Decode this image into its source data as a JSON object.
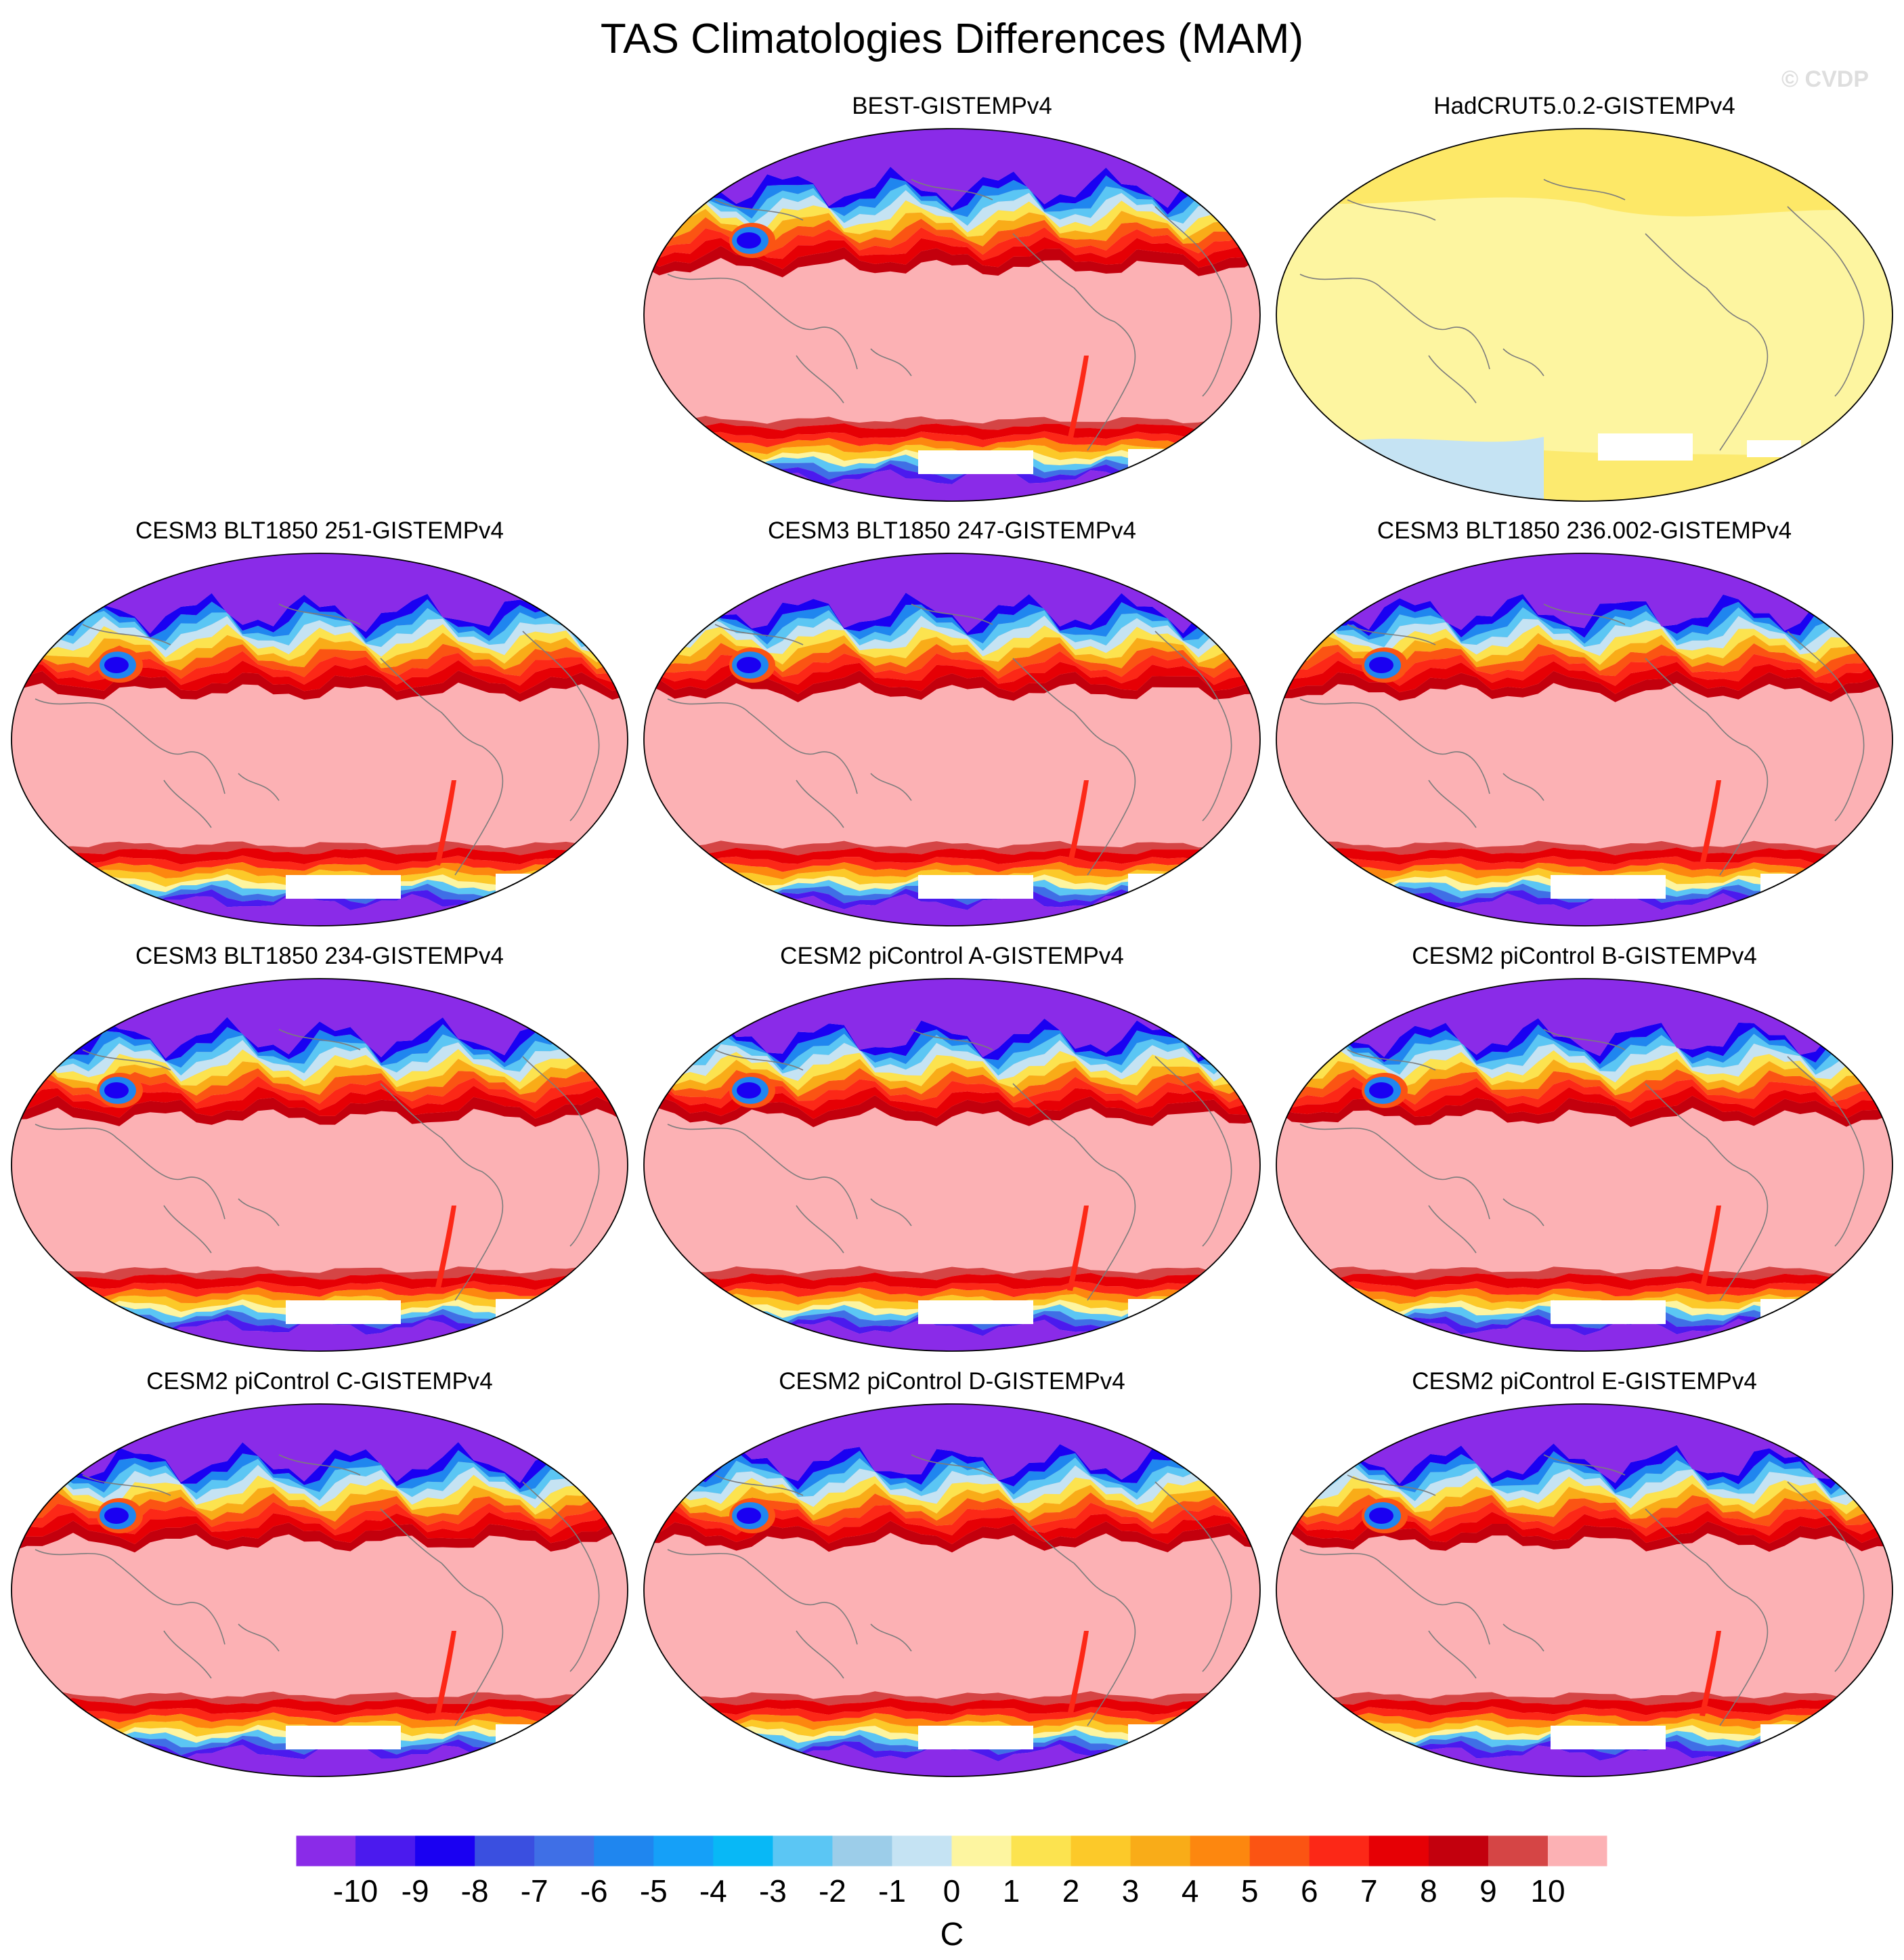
{
  "figure": {
    "title": "TAS Climatologies Differences (MAM)",
    "watermark": "© CVDP"
  },
  "panels": [
    {
      "label": "BEST-GISTEMPv4",
      "style": "model"
    },
    {
      "label": "HadCRUT5.0.2-GISTEMPv4",
      "style": "obs"
    },
    {
      "label": "CESM3 BLT1850 251-GISTEMPv4",
      "style": "model"
    },
    {
      "label": "CESM3 BLT1850 247-GISTEMPv4",
      "style": "model"
    },
    {
      "label": "CESM3 BLT1850 236.002-GISTEMPv4",
      "style": "model"
    },
    {
      "label": "CESM3 BLT1850 234-GISTEMPv4",
      "style": "model"
    },
    {
      "label": "CESM2 piControl A-GISTEMPv4",
      "style": "model"
    },
    {
      "label": "CESM2 piControl B-GISTEMPv4",
      "style": "model"
    },
    {
      "label": "CESM2 piControl C-GISTEMPv4",
      "style": "model"
    },
    {
      "label": "CESM2 piControl D-GISTEMPv4",
      "style": "model"
    },
    {
      "label": "CESM2 piControl E-GISTEMPv4",
      "style": "model"
    }
  ],
  "colorbar": {
    "units": "C",
    "ticks": [
      "-10",
      "-9",
      "-8",
      "-7",
      "-6",
      "-5",
      "-4",
      "-3",
      "-2",
      "-1",
      "0",
      "1",
      "2",
      "3",
      "4",
      "5",
      "6",
      "7",
      "8",
      "9",
      "10"
    ],
    "colors": [
      "#8a2be8",
      "#4b1aee",
      "#1a00f2",
      "#3a4fe0",
      "#3f6fe6",
      "#1f86ef",
      "#15a0f8",
      "#08b8f6",
      "#5bc6f4",
      "#9ccde9",
      "#c5e3f3",
      "#fdf5a0",
      "#fce34f",
      "#fcc929",
      "#f9ac18",
      "#fd870f",
      "#fb5413",
      "#fc2817",
      "#e60005",
      "#c3000d",
      "#d54545",
      "#fcb1b4"
    ],
    "fill_colors": {
      "background": "#fcb1b4",
      "arctic": "#8a2be8",
      "obs_background": "#fdf5a0",
      "obs_warm_patch": "#fce34f",
      "obs_cool_patch": "#c5e3f3",
      "missing": "#ffffff",
      "coast": "#7c7c7c"
    }
  }
}
